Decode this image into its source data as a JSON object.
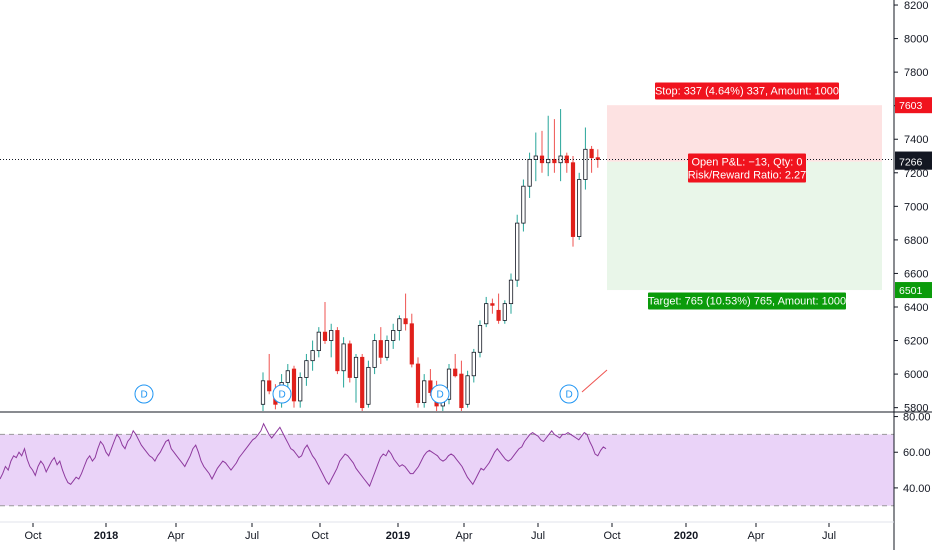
{
  "chart_data": {
    "type": "candlestick",
    "price_axis": {
      "ticks": [
        5800,
        6000,
        6200,
        6400,
        6600,
        6800,
        7000,
        7200,
        7400,
        7600,
        7800,
        8000,
        8200
      ],
      "ylim": [
        5780,
        8230
      ],
      "last_price": "7279",
      "secondary_price": "7266",
      "stop_price": "7603",
      "target_price": "6501"
    },
    "time_axis": {
      "labels": [
        "Oct",
        "2018",
        "Apr",
        "Jul",
        "Oct",
        "2019",
        "Apr",
        "Jul",
        "Oct",
        "2020",
        "Apr",
        "Jul"
      ],
      "bold": [
        false,
        true,
        false,
        false,
        false,
        true,
        false,
        false,
        false,
        true,
        false,
        false
      ]
    },
    "candles": [
      [
        5820,
        6010,
        5780,
        5960
      ],
      [
        5960,
        6120,
        5880,
        5900
      ],
      [
        5880,
        5940,
        5790,
        5820
      ],
      [
        5830,
        6000,
        5800,
        5950
      ],
      [
        5950,
        6060,
        5920,
        6020
      ],
      [
        6030,
        6050,
        5800,
        5840
      ],
      [
        5840,
        6010,
        5800,
        5980
      ],
      [
        5980,
        6120,
        5930,
        6080
      ],
      [
        6080,
        6200,
        6020,
        6140
      ],
      [
        6140,
        6280,
        6100,
        6250
      ],
      [
        6250,
        6430,
        6180,
        6200
      ],
      [
        6200,
        6300,
        6100,
        6260
      ],
      [
        6260,
        6280,
        6000,
        6020
      ],
      [
        6020,
        6220,
        5920,
        6180
      ],
      [
        6180,
        6200,
        5950,
        5980
      ],
      [
        5980,
        6120,
        5830,
        6100
      ],
      [
        6100,
        6120,
        5780,
        5800
      ],
      [
        5820,
        6080,
        5800,
        6040
      ],
      [
        6040,
        6240,
        6000,
        6200
      ],
      [
        6200,
        6280,
        6060,
        6100
      ],
      [
        6100,
        6230,
        6080,
        6200
      ],
      [
        6200,
        6300,
        6150,
        6260
      ],
      [
        6260,
        6350,
        6200,
        6330
      ],
      [
        6330,
        6480,
        6260,
        6300
      ],
      [
        6300,
        6360,
        6040,
        6060
      ],
      [
        6060,
        6100,
        5800,
        5830
      ],
      [
        5830,
        6000,
        5800,
        5960
      ],
      [
        5960,
        6030,
        5870,
        5890
      ],
      [
        5890,
        5960,
        5780,
        5810
      ],
      [
        5810,
        5900,
        5780,
        5850
      ],
      [
        5850,
        6060,
        5820,
        6030
      ],
      [
        6030,
        6120,
        5980,
        5990
      ],
      [
        6000,
        6080,
        5780,
        5800
      ],
      [
        5820,
        6020,
        5800,
        5990
      ],
      [
        5990,
        6150,
        5950,
        6130
      ],
      [
        6130,
        6320,
        6100,
        6290
      ],
      [
        6300,
        6460,
        6280,
        6420
      ],
      [
        6420,
        6450,
        6360,
        6410
      ],
      [
        6380,
        6480,
        6300,
        6320
      ],
      [
        6320,
        6440,
        6300,
        6420
      ],
      [
        6420,
        6600,
        6360,
        6560
      ],
      [
        6560,
        6950,
        6520,
        6900
      ],
      [
        6900,
        7160,
        6850,
        7120
      ],
      [
        7120,
        7320,
        7050,
        7280
      ],
      [
        7280,
        7440,
        7150,
        7300
      ],
      [
        7300,
        7450,
        7200,
        7260
      ],
      [
        7260,
        7540,
        7180,
        7280
      ],
      [
        7280,
        7520,
        7200,
        7260
      ],
      [
        7260,
        7580,
        7150,
        7300
      ],
      [
        7300,
        7320,
        7200,
        7260
      ],
      [
        7260,
        7300,
        6760,
        6820
      ],
      [
        6820,
        7200,
        6800,
        7160
      ],
      [
        7160,
        7470,
        7100,
        7340
      ],
      [
        7340,
        7360,
        7200,
        7290
      ],
      [
        7290,
        7340,
        7230,
        7279
      ]
    ],
    "rsi": {
      "levels": [
        80,
        60,
        40
      ],
      "upper_band": 70,
      "lower_band": 30,
      "range": [
        22,
        82
      ],
      "values": [
        45,
        48,
        52,
        50,
        55,
        58,
        57,
        60,
        58,
        62,
        56,
        52,
        50,
        47,
        52,
        55,
        53,
        49,
        52,
        55,
        57,
        53,
        55,
        50,
        46,
        43,
        42,
        44,
        46,
        45,
        48,
        52,
        56,
        58,
        55,
        57,
        62,
        66,
        64,
        60,
        58,
        62,
        66,
        70,
        68,
        64,
        62,
        66,
        68,
        72,
        70,
        67,
        64,
        62,
        60,
        58,
        57,
        55,
        58,
        60,
        63,
        66,
        67,
        62,
        60,
        58,
        56,
        54,
        52,
        55,
        58,
        62,
        64,
        60,
        55,
        52,
        50,
        48,
        45,
        48,
        51,
        53,
        55,
        54,
        52,
        50,
        52,
        54,
        57,
        59,
        61,
        63,
        65,
        67,
        68,
        70,
        72,
        76,
        73,
        70,
        68,
        70,
        72,
        74,
        71,
        68,
        65,
        62,
        61,
        59,
        57,
        58,
        62,
        64,
        61,
        58,
        56,
        53,
        50,
        47,
        44,
        42,
        45,
        48,
        51,
        55,
        57,
        59,
        58,
        56,
        54,
        51,
        49,
        47,
        45,
        43,
        41,
        45,
        49,
        53,
        57,
        59,
        58,
        61,
        59,
        56,
        54,
        52,
        53,
        52,
        50,
        48,
        48,
        50,
        52,
        55,
        58,
        60,
        61,
        60,
        59,
        58,
        56,
        55,
        56,
        58,
        59,
        58,
        56,
        54,
        52,
        49,
        46,
        44,
        42,
        45,
        48,
        51,
        50,
        52,
        54,
        57,
        60,
        62,
        60,
        58,
        56,
        55,
        56,
        58,
        60,
        62,
        63,
        66,
        68,
        70,
        71,
        70,
        69,
        67,
        66,
        68,
        70,
        72,
        70,
        69,
        68,
        70,
        70,
        71,
        70,
        69,
        68,
        67,
        69,
        71,
        70,
        66,
        63,
        59,
        58,
        61,
        63,
        62
      ]
    },
    "dividend_marker": "D",
    "position": {
      "stop_label": "Stop: 337 (4.64%) 337, Amount: 1000",
      "target_label": "Target: 765 (10.53%) 765, Amount: 1000",
      "pnl_label": "Open P&L: −13, Qty: 0",
      "rr_label": "Risk/Reward Ratio: 2.27",
      "entry_price": 7266,
      "stop_price": 7603,
      "target_price": 6501
    },
    "colors": {
      "up": "#26a69a",
      "down": "#ef5350",
      "down_body": "#e0201b",
      "bull_body": "#ffffff",
      "rsi_line": "#8e3a9e",
      "rsi_fill": "#e6cbf7",
      "stop_zone": "#fde2e2",
      "target_zone": "#e9f6e9",
      "stop_tag": "#f0131e",
      "target_tag": "#0b9b0b",
      "last_price_tag": "#131722"
    }
  }
}
